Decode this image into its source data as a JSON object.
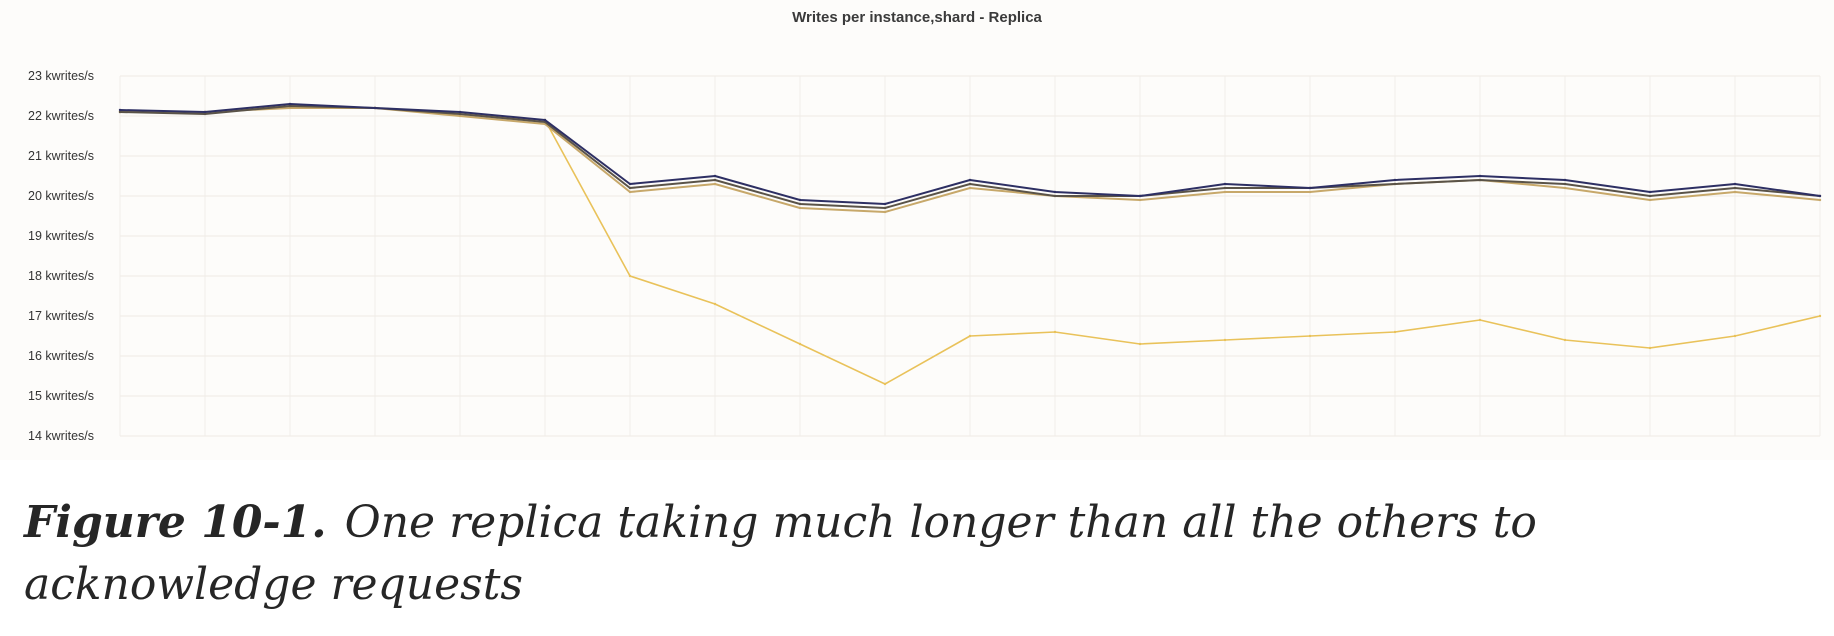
{
  "chart_data": {
    "type": "line",
    "title": "Writes per instance,shard - Replica",
    "xlabel": "",
    "ylabel": "",
    "ylim": [
      14,
      23
    ],
    "y_ticks": [
      {
        "value": 23,
        "label": "23 kwrites/s"
      },
      {
        "value": 22,
        "label": "22 kwrites/s"
      },
      {
        "value": 21,
        "label": "21 kwrites/s"
      },
      {
        "value": 20,
        "label": "20 kwrites/s"
      },
      {
        "value": 19,
        "label": "19 kwrites/s"
      },
      {
        "value": 18,
        "label": "18 kwrites/s"
      },
      {
        "value": 17,
        "label": "17 kwrites/s"
      },
      {
        "value": 16,
        "label": "16 kwrites/s"
      },
      {
        "value": 15,
        "label": "15 kwrites/s"
      },
      {
        "value": 14,
        "label": "14 kwrites/s"
      }
    ],
    "grid": true,
    "legend": "none",
    "x": [
      0,
      5,
      10,
      15,
      20,
      25,
      30,
      35,
      40,
      45,
      50,
      55,
      60,
      65,
      70,
      75,
      80,
      85,
      90,
      95,
      100
    ],
    "series": [
      {
        "color": "#2d2f63",
        "values": [
          22.15,
          22.1,
          22.3,
          22.2,
          22.1,
          21.9,
          20.3,
          20.5,
          19.9,
          19.8,
          20.4,
          20.1,
          20.0,
          20.3,
          20.2,
          20.4,
          20.5,
          20.4,
          20.1,
          20.3,
          20.0
        ]
      },
      {
        "color": "#5a5348",
        "values": [
          22.1,
          22.05,
          22.25,
          22.2,
          22.05,
          21.85,
          20.2,
          20.4,
          19.8,
          19.7,
          20.3,
          20.0,
          20.0,
          20.2,
          20.2,
          20.3,
          20.4,
          20.3,
          20.0,
          20.2,
          20.0
        ]
      },
      {
        "color": "#c7a86a",
        "values": [
          22.1,
          22.1,
          22.2,
          22.2,
          22.0,
          21.8,
          20.1,
          20.3,
          19.7,
          19.6,
          20.2,
          20.0,
          19.9,
          20.1,
          20.1,
          20.3,
          20.4,
          20.2,
          19.9,
          20.1,
          19.9
        ]
      },
      {
        "color": "#e9c25a",
        "values": [
          22.1,
          22.1,
          22.25,
          22.2,
          22.05,
          21.9,
          18.0,
          17.3,
          16.3,
          15.3,
          16.5,
          16.6,
          16.3,
          16.4,
          16.5,
          16.6,
          16.9,
          16.4,
          16.2,
          16.5,
          17.0
        ]
      }
    ]
  },
  "caption": {
    "label": "Figure 10-1.",
    "text": "One replica taking much longer than all the others to acknowledge requests"
  }
}
